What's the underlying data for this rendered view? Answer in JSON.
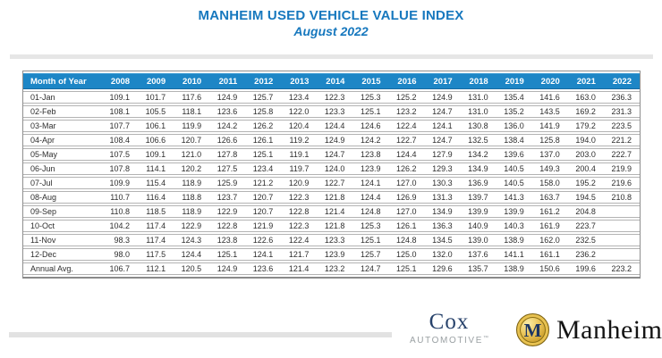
{
  "header": {
    "title": "MANHEIM USED VEHICLE VALUE INDEX",
    "subtitle": "August 2022"
  },
  "colors": {
    "title_blue": "#1778be",
    "table_header_bg": "#1d86c6",
    "table_header_text": "#ffffff",
    "row_border": "#b3b3b3",
    "coin_gold": "#d4a937",
    "cox_navy": "#27426b",
    "cox_gray": "#9aa0a3"
  },
  "chart_data": {
    "type": "table",
    "title": "MANHEIM USED VEHICLE VALUE INDEX",
    "subtitle": "August 2022",
    "columns": [
      "Month of Year",
      "2008",
      "2009",
      "2010",
      "2011",
      "2012",
      "2013",
      "2014",
      "2015",
      "2016",
      "2017",
      "2018",
      "2019",
      "2020",
      "2021",
      "2022"
    ],
    "rows": [
      {
        "label": "01-Jan",
        "values": [
          "109.1",
          "101.7",
          "117.6",
          "124.9",
          "125.7",
          "123.4",
          "122.3",
          "125.3",
          "125.2",
          "124.9",
          "131.0",
          "135.4",
          "141.6",
          "163.0",
          "236.3"
        ]
      },
      {
        "label": "02-Feb",
        "values": [
          "108.1",
          "105.5",
          "118.1",
          "123.6",
          "125.8",
          "122.0",
          "123.3",
          "125.1",
          "123.2",
          "124.7",
          "131.0",
          "135.2",
          "143.5",
          "169.2",
          "231.3"
        ]
      },
      {
        "label": "03-Mar",
        "values": [
          "107.7",
          "106.1",
          "119.9",
          "124.2",
          "126.2",
          "120.4",
          "124.4",
          "124.6",
          "122.4",
          "124.1",
          "130.8",
          "136.0",
          "141.9",
          "179.2",
          "223.5"
        ]
      },
      {
        "label": "04-Apr",
        "values": [
          "108.4",
          "106.6",
          "120.7",
          "126.6",
          "126.1",
          "119.2",
          "124.9",
          "124.2",
          "122.7",
          "124.7",
          "132.5",
          "138.4",
          "125.8",
          "194.0",
          "221.2"
        ]
      },
      {
        "label": "05-May",
        "values": [
          "107.5",
          "109.1",
          "121.0",
          "127.8",
          "125.1",
          "119.1",
          "124.7",
          "123.8",
          "124.4",
          "127.9",
          "134.2",
          "139.6",
          "137.0",
          "203.0",
          "222.7"
        ]
      },
      {
        "label": "06-Jun",
        "values": [
          "107.8",
          "114.1",
          "120.2",
          "127.5",
          "123.4",
          "119.7",
          "124.0",
          "123.9",
          "126.2",
          "129.3",
          "134.9",
          "140.5",
          "149.3",
          "200.4",
          "219.9"
        ]
      },
      {
        "label": "07-Jul",
        "values": [
          "109.9",
          "115.4",
          "118.9",
          "125.9",
          "121.2",
          "120.9",
          "122.7",
          "124.1",
          "127.0",
          "130.3",
          "136.9",
          "140.5",
          "158.0",
          "195.2",
          "219.6"
        ]
      },
      {
        "label": "08-Aug",
        "values": [
          "110.7",
          "116.4",
          "118.8",
          "123.7",
          "120.7",
          "122.3",
          "121.8",
          "124.4",
          "126.9",
          "131.3",
          "139.7",
          "141.3",
          "163.7",
          "194.5",
          "210.8"
        ]
      },
      {
        "label": "09-Sep",
        "values": [
          "110.8",
          "118.5",
          "118.9",
          "122.9",
          "120.7",
          "122.8",
          "121.4",
          "124.8",
          "127.0",
          "134.9",
          "139.9",
          "139.9",
          "161.2",
          "204.8",
          ""
        ]
      },
      {
        "label": "10-Oct",
        "values": [
          "104.2",
          "117.4",
          "122.9",
          "122.8",
          "121.9",
          "122.3",
          "121.8",
          "125.3",
          "126.1",
          "136.3",
          "140.9",
          "140.3",
          "161.9",
          "223.7",
          ""
        ]
      },
      {
        "label": "11-Nov",
        "values": [
          "98.3",
          "117.4",
          "124.3",
          "123.8",
          "122.6",
          "122.4",
          "123.3",
          "125.1",
          "124.8",
          "134.5",
          "139.0",
          "138.9",
          "162.0",
          "232.5",
          ""
        ]
      },
      {
        "label": "12-Dec",
        "values": [
          "98.0",
          "117.5",
          "124.4",
          "125.1",
          "124.1",
          "121.7",
          "123.9",
          "125.7",
          "125.0",
          "132.0",
          "137.6",
          "141.1",
          "161.1",
          "236.2",
          ""
        ]
      },
      {
        "label": "Annual Avg.",
        "values": [
          "106.7",
          "112.1",
          "120.5",
          "124.9",
          "123.6",
          "121.4",
          "123.2",
          "124.7",
          "125.1",
          "129.6",
          "135.7",
          "138.9",
          "150.6",
          "199.6",
          "223.2"
        ]
      }
    ]
  },
  "footer": {
    "cox_name": "Cox",
    "cox_sub": "AUTOMOTIVE",
    "cox_tm": "™",
    "manheim_monogram": "M",
    "manheim_wordmark": "Manheim"
  }
}
